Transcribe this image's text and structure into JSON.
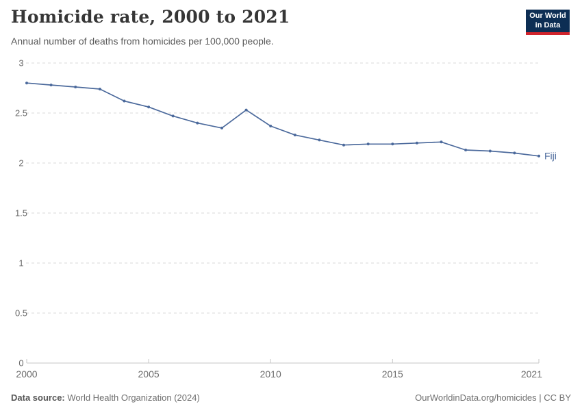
{
  "header": {
    "title": "Homicide rate, 2000 to 2021",
    "subtitle": "Annual number of deaths from homicides per 100,000 people.",
    "logo": {
      "line1": "Our World",
      "line2": "in Data",
      "bg_color": "#0d2e54",
      "accent_color": "#d1242c"
    }
  },
  "chart_data": {
    "type": "line",
    "title": "Homicide rate, 2000 to 2021",
    "xlabel": "",
    "ylabel": "Annual number of deaths from homicides per 100,000 people",
    "xlim": [
      2000,
      2021
    ],
    "ylim": [
      0,
      3
    ],
    "x_ticks": [
      "2000",
      "2005",
      "2010",
      "2015",
      "2021"
    ],
    "x_tick_values": [
      2000,
      2005,
      2010,
      2015,
      2021
    ],
    "y_ticks": [
      "0",
      "0.5",
      "1",
      "1.5",
      "2",
      "2.5",
      "3"
    ],
    "y_tick_values": [
      0,
      0.5,
      1,
      1.5,
      2,
      2.5,
      3
    ],
    "grid": "horizontal-dashed",
    "legend_position": "end-of-line",
    "colors": {
      "grid": "#dadada",
      "axis": "#c6c6c6",
      "tick_text": "#6b6b6b"
    },
    "series": [
      {
        "name": "Fiji",
        "color": "#4c6a9c",
        "x": [
          2000,
          2001,
          2002,
          2003,
          2004,
          2005,
          2006,
          2007,
          2008,
          2009,
          2010,
          2011,
          2012,
          2013,
          2014,
          2015,
          2016,
          2017,
          2018,
          2019,
          2020,
          2021
        ],
        "values": [
          2.8,
          2.78,
          2.76,
          2.74,
          2.62,
          2.56,
          2.47,
          2.4,
          2.35,
          2.53,
          2.37,
          2.28,
          2.23,
          2.18,
          2.19,
          2.19,
          2.2,
          2.21,
          2.13,
          2.12,
          2.1,
          2.07
        ]
      }
    ]
  },
  "footer": {
    "source_label": "Data source:",
    "source_text": " World Health Organization (2024)",
    "credit": "OurWorldinData.org/homicides | CC BY"
  }
}
